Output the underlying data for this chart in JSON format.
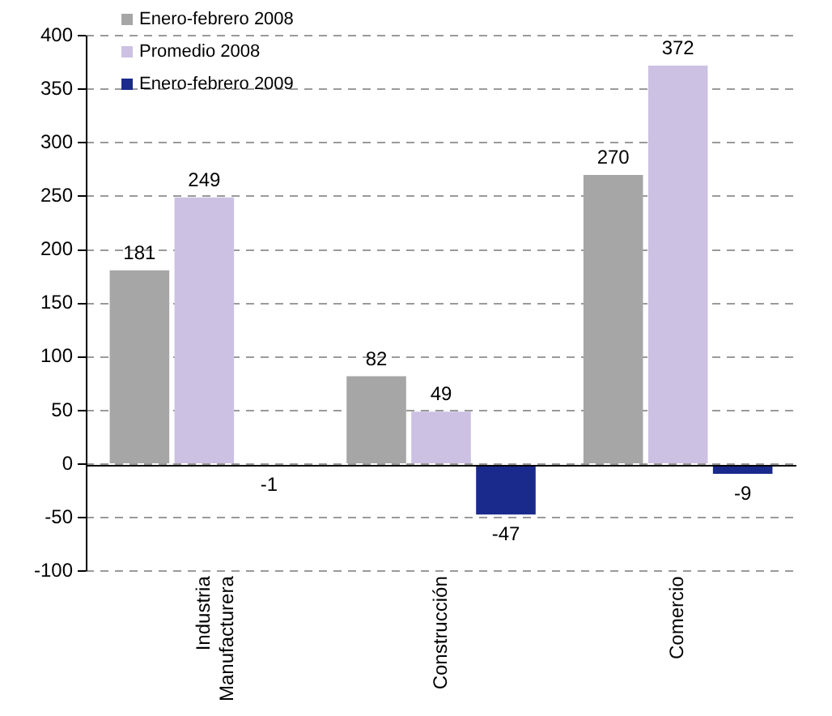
{
  "chart_data": {
    "type": "bar",
    "categories": [
      "Industria Manufacturera",
      "Construcción",
      "Comercio"
    ],
    "series": [
      {
        "name": "Enero-febrero 2008",
        "color": "#a6a6a6",
        "values": [
          181,
          82,
          270
        ]
      },
      {
        "name": "Promedio 2008",
        "color": "#ccc1e2",
        "values": [
          249,
          49,
          372
        ]
      },
      {
        "name": "Enero-febrero 2009",
        "color": "#1a2a8c",
        "values": [
          -1,
          -47,
          -9
        ]
      }
    ],
    "ylim": [
      -100,
      400
    ],
    "yticks": [
      -100,
      -50,
      0,
      50,
      100,
      150,
      200,
      250,
      300,
      350,
      400
    ],
    "grid": "y",
    "legend": "top left",
    "data_labels": true
  }
}
